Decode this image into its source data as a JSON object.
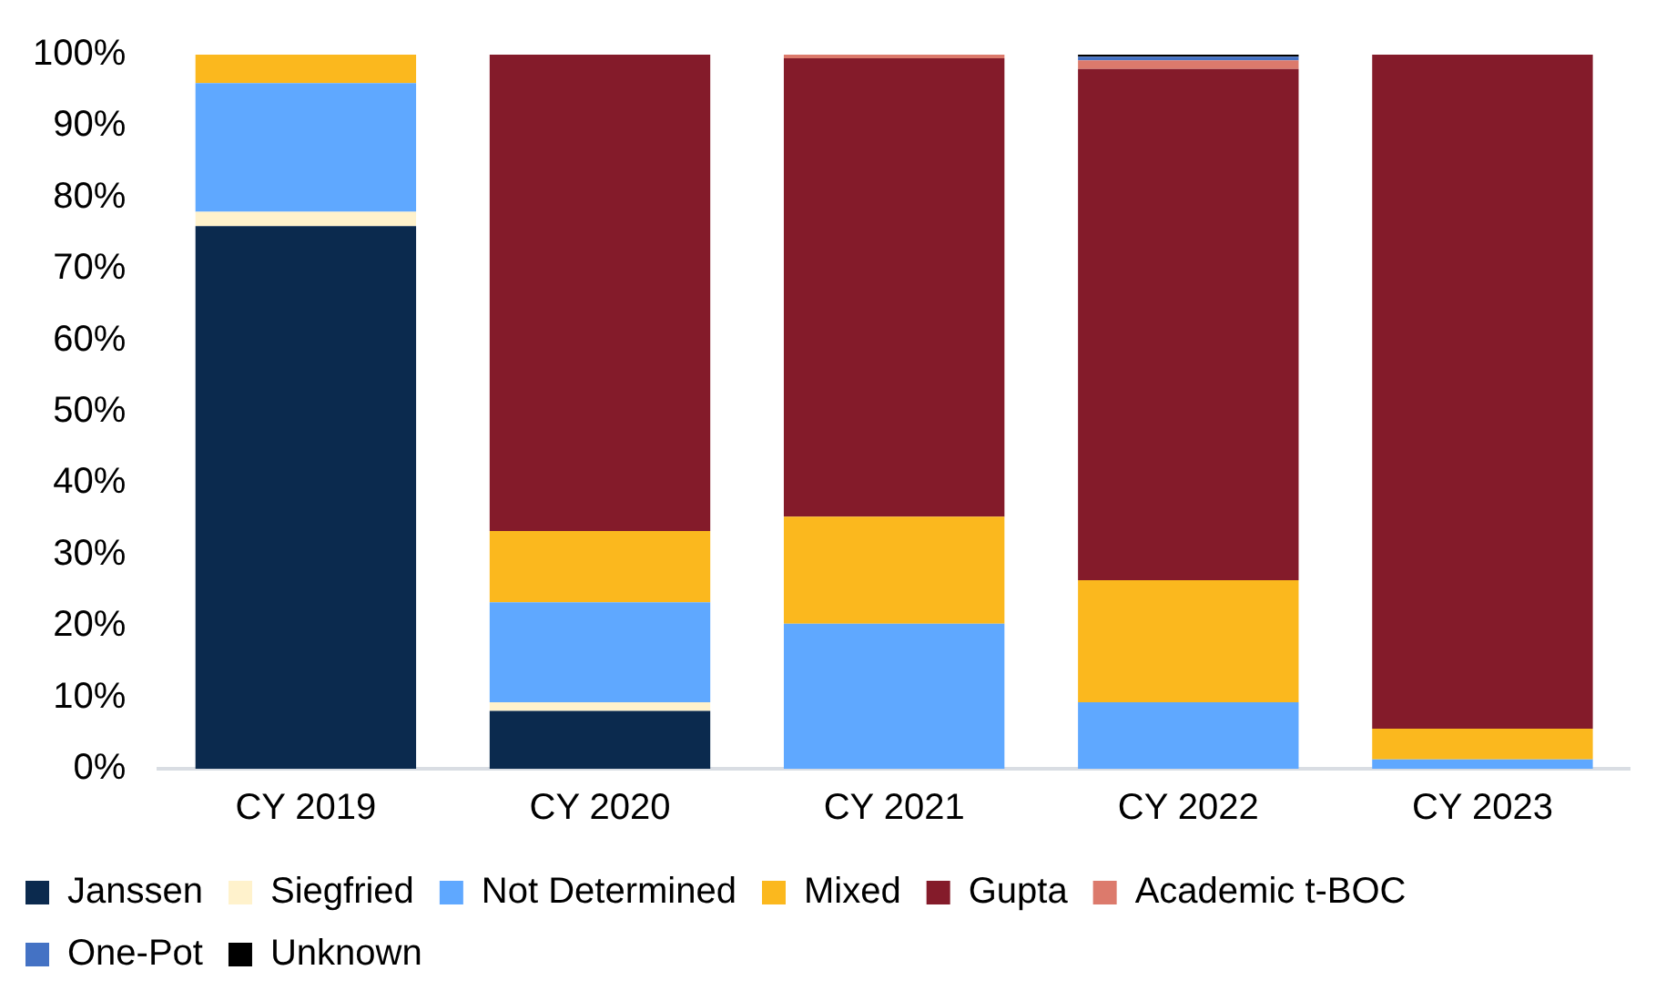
{
  "chart_data": {
    "type": "bar",
    "stacked": true,
    "categories": [
      "CY 2019",
      "CY 2020",
      "CY 2021",
      "CY 2022",
      "CY 2023"
    ],
    "series": [
      {
        "name": "Janssen",
        "color": "#0b2a4e",
        "values": [
          76,
          8.1,
          0,
          0,
          0
        ]
      },
      {
        "name": "Siegfried",
        "color": "#fff2cc",
        "values": [
          2,
          1.2,
          0,
          0,
          0
        ]
      },
      {
        "name": "Not Determined",
        "color": "#5fa8ff",
        "values": [
          18,
          14,
          20.3,
          9.3,
          1.3
        ]
      },
      {
        "name": "Mixed",
        "color": "#fbb81e",
        "values": [
          4,
          10,
          15,
          17.1,
          4.3
        ]
      },
      {
        "name": "Gupta",
        "color": "#841b2a",
        "values": [
          0,
          66.7,
          64.2,
          71.6,
          94.4
        ]
      },
      {
        "name": "Academic t-BOC",
        "color": "#dc7a6c",
        "values": [
          0,
          0,
          0.5,
          1.2,
          0
        ]
      },
      {
        "name": "One-Pot",
        "color": "#4472c4",
        "values": [
          0,
          0,
          0,
          0.5,
          0
        ]
      },
      {
        "name": "Unknown",
        "color": "#000000",
        "values": [
          0,
          0,
          0,
          0.3,
          0
        ]
      }
    ],
    "ylim": [
      0,
      100
    ],
    "yticks": [
      {
        "value": 0,
        "label": "0%"
      },
      {
        "value": 10,
        "label": "10%"
      },
      {
        "value": 20,
        "label": "20%"
      },
      {
        "value": 30,
        "label": "30%"
      },
      {
        "value": 40,
        "label": "40%"
      },
      {
        "value": 50,
        "label": "50%"
      },
      {
        "value": 60,
        "label": "60%"
      },
      {
        "value": 70,
        "label": "70%"
      },
      {
        "value": 80,
        "label": "80%"
      },
      {
        "value": 90,
        "label": "90%"
      },
      {
        "value": 100,
        "label": "100%"
      }
    ],
    "grid": false,
    "legend": "bottom"
  }
}
